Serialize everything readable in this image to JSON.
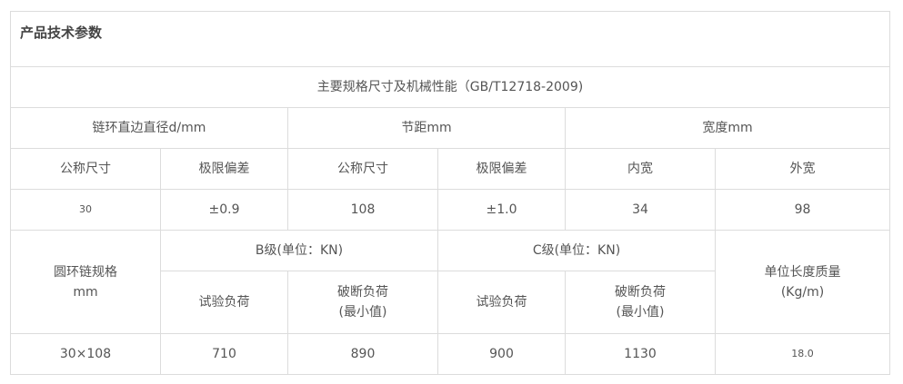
{
  "title": "产品技术参数",
  "standard": "主要规格尺寸及机械性能（GB/T12718-2009)",
  "groups": {
    "diameter": "链环直边直径d/mm",
    "pitch": "节距mm",
    "width": "宽度mm"
  },
  "sub": {
    "nominal1": "公称尺寸",
    "tol1": "极限偏差",
    "nominal2": "公称尺寸",
    "tol2": "极限偏差",
    "inner": "内宽",
    "outer": "外宽"
  },
  "dims": {
    "d": "30",
    "d_tol": "±0.9",
    "pitch": "108",
    "pitch_tol": "±1.0",
    "inner": "34",
    "outer": "98"
  },
  "mech": {
    "spec_label_1": "圆环链规格",
    "spec_label_2": "mm",
    "b_grade": "B级(单位：KN)",
    "c_grade": "C级(单位：KN)",
    "mass_label_1": "单位长度质量",
    "mass_label_2": "(Kg/m)",
    "test_load": "试验负荷",
    "break_load_1": "破断负荷",
    "break_load_2": "(最小值)"
  },
  "row": {
    "spec": "30×108",
    "b_test": "710",
    "b_break": "890",
    "c_test": "900",
    "c_break": "1130",
    "mass": "18.0"
  }
}
